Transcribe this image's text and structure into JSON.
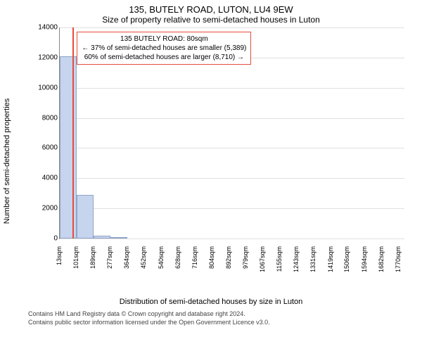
{
  "title": "135, BUTELY ROAD, LUTON, LU4 9EW",
  "subtitle": "Size of property relative to semi-detached houses in Luton",
  "ylabel": "Number of semi-detached properties",
  "xlabel": "Distribution of semi-detached houses by size in Luton",
  "footer_line1": "Contains HM Land Registry data © Crown copyright and database right 2024.",
  "footer_line2": "Contains public sector information licensed under the Open Government Licence v3.0.",
  "chart": {
    "type": "histogram",
    "ylim": [
      0,
      14000
    ],
    "ytick_step": 2000,
    "xlim": [
      13,
      1800
    ],
    "xticks": [
      13,
      101,
      189,
      277,
      364,
      452,
      540,
      628,
      716,
      804,
      892,
      979,
      1067,
      1155,
      1243,
      1331,
      1419,
      1506,
      1594,
      1682,
      1770
    ],
    "xtick_suffix": "sqm",
    "bar_fill": "#c6d4ee",
    "bar_border": "#8fa4c9",
    "grid_color": "#e0e0e0",
    "bars": [
      {
        "x0": 13,
        "x1": 101,
        "y": 12100
      },
      {
        "x0": 101,
        "x1": 189,
        "y": 2900
      },
      {
        "x0": 189,
        "x1": 277,
        "y": 200
      },
      {
        "x0": 277,
        "x1": 364,
        "y": 60
      }
    ],
    "marker": {
      "x": 80,
      "color": "#e74c3c",
      "box": {
        "line1": "135 BUTELY ROAD: 80sqm",
        "line2": "← 37% of semi-detached houses are smaller (5,389)",
        "line3": "60% of semi-detached houses are larger (8,710) →"
      }
    }
  }
}
